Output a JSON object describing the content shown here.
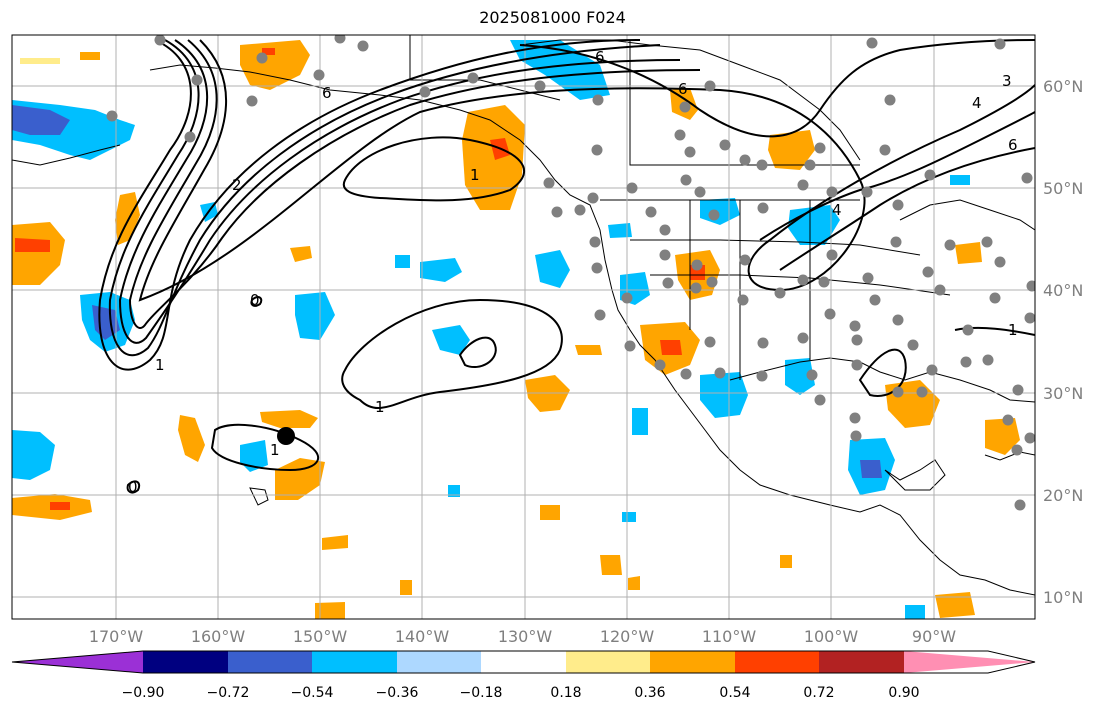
{
  "title": "2025081000 F024",
  "longitude_labels": [
    "170°W",
    "160°W",
    "150°W",
    "140°W",
    "130°W",
    "120°W",
    "110°W",
    "100°W",
    "90°W"
  ],
  "latitude_labels": [
    "60°N",
    "50°N",
    "40°N",
    "30°N",
    "20°N",
    "10°N"
  ],
  "colorbar": {
    "tick_labels": [
      "−0.90",
      "−0.72",
      "−0.54",
      "−0.36",
      "−0.18",
      "0.18",
      "0.36",
      "0.54",
      "0.72",
      "0.90"
    ],
    "colors": [
      "#9b30d6",
      "#000080",
      "#3a5fcd",
      "#00bfff",
      "#add8ff",
      "#ffffff",
      "#ffec8b",
      "#ffa500",
      "#ff4000",
      "#b22222",
      "#ff8fb3"
    ]
  },
  "contour_labels": [
    "6",
    "6",
    "6",
    "3",
    "4",
    "6",
    "1",
    "1",
    "1",
    "1",
    "2",
    "4",
    "0",
    "0",
    "1"
  ],
  "colors": {
    "grid": "#b0b0b0",
    "land_outline": "#000000",
    "contour": "#000000",
    "station_dot": "#808080"
  },
  "marker": "black-circle-marker"
}
